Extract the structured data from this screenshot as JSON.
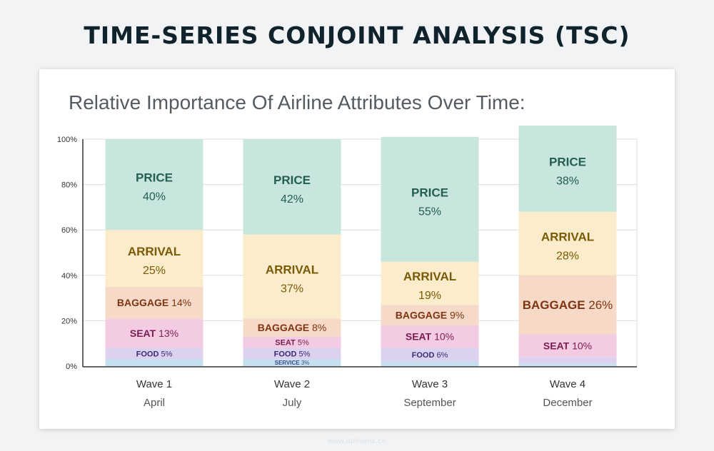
{
  "page_title": "TIME-SERIES CONJOINT ANALYSIS (TSC)",
  "footer": "www.opinionx.co",
  "chart_data": {
    "type": "bar",
    "stacked": true,
    "title": "Relative Importance Of Airline Attributes Over Time:",
    "categories": [
      "Wave 1",
      "Wave 2",
      "Wave 3",
      "Wave 4"
    ],
    "category_sublabels": [
      "April",
      "July",
      "September",
      "December"
    ],
    "ylim": [
      0,
      100
    ],
    "yticks": [
      "0%",
      "20%",
      "40%",
      "60%",
      "80%",
      "100%"
    ],
    "grid": true,
    "series": [
      {
        "name": "SERVICE",
        "values": [
          3,
          3,
          2,
          1
        ],
        "value_labels": [
          "",
          "3%",
          "",
          ""
        ],
        "color": "#c5e0ef",
        "text_color": "#3f4a8c"
      },
      {
        "name": "FOOD",
        "values": [
          5,
          5,
          6,
          3
        ],
        "value_labels": [
          "5%",
          "5%",
          "6%",
          ""
        ],
        "color": "#dcd2ef",
        "text_color": "#3b2a72"
      },
      {
        "name": "SEAT",
        "values": [
          13,
          5,
          10,
          10
        ],
        "value_labels": [
          "13%",
          "5%",
          "10%",
          "10%"
        ],
        "color": "#f3cbe2",
        "text_color": "#7a1d52"
      },
      {
        "name": "BAGGAGE",
        "values": [
          14,
          8,
          9,
          26
        ],
        "value_labels": [
          "14%",
          "8%",
          "9%",
          "26%"
        ],
        "color": "#f7d9c8",
        "text_color": "#7c3512"
      },
      {
        "name": "ARRIVAL",
        "values": [
          25,
          37,
          19,
          28
        ],
        "value_labels": [
          "25%",
          "37%",
          "19%",
          "28%"
        ],
        "color": "#fbeccb",
        "text_color": "#7a5a06"
      },
      {
        "name": "PRICE",
        "values": [
          40,
          42,
          55,
          38
        ],
        "value_labels": [
          "40%",
          "42%",
          "55%",
          "38%"
        ],
        "color": "#c8e5de",
        "text_color": "#245e52"
      }
    ]
  }
}
